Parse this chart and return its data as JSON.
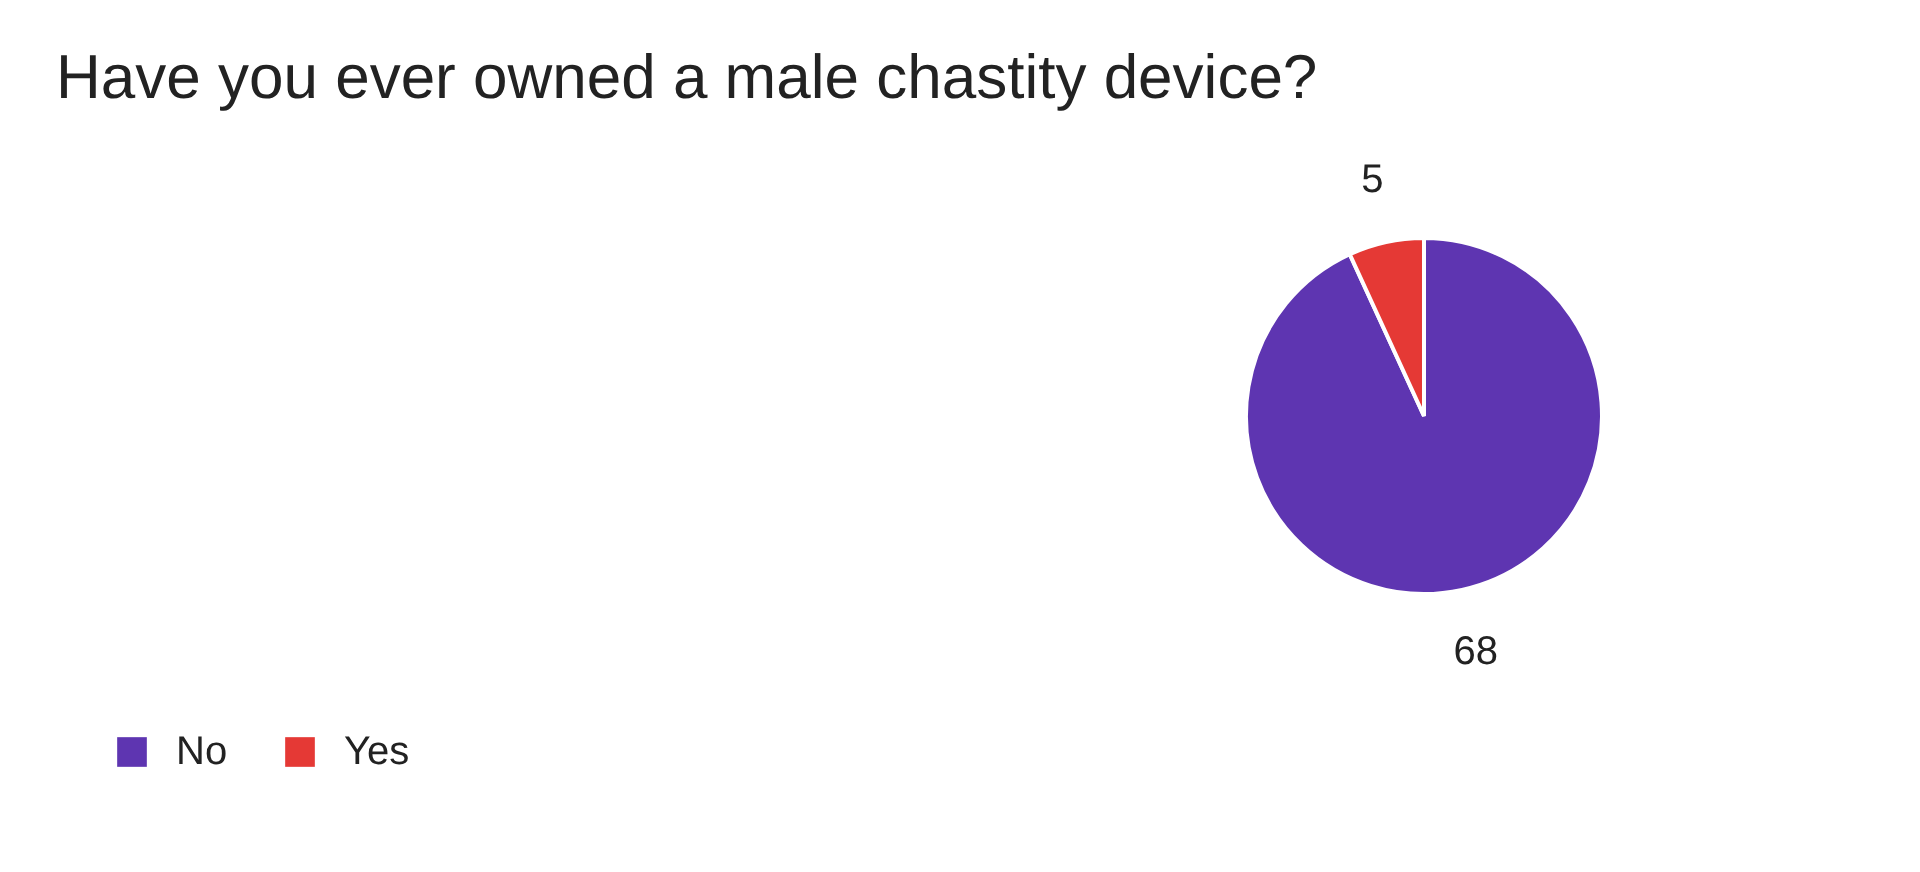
{
  "chart_data": {
    "type": "pie",
    "title": "Have you ever owned a male chastity device?",
    "categories": [
      "No",
      "Yes"
    ],
    "values": [
      68,
      5
    ],
    "colors": [
      "#5e35b1",
      "#e53935"
    ],
    "data_labels": true,
    "legend": "bottom left"
  }
}
